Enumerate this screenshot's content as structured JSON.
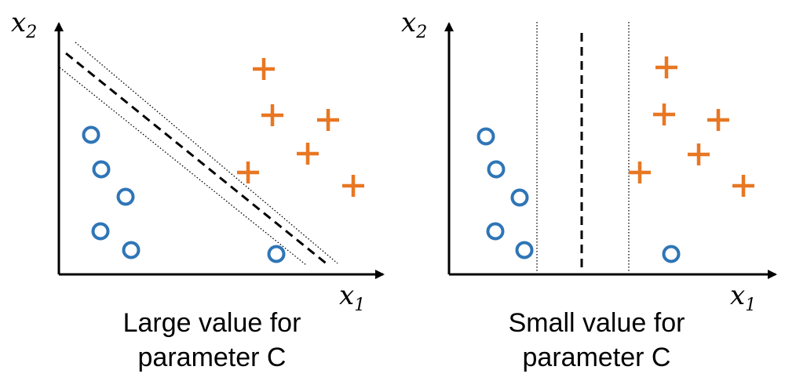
{
  "colors": {
    "circle": "#2e75b6",
    "plus": "#e87722",
    "axis": "#000000",
    "boundary": "#000000"
  },
  "panels": [
    {
      "x_axis_label": "x",
      "x_axis_sub": "1",
      "y_axis_label": "x",
      "y_axis_sub": "2",
      "caption_line1": "Large value for",
      "caption_line2": "parameter C",
      "circles": [
        [
          116,
          172
        ],
        [
          129,
          216
        ],
        [
          160,
          251
        ],
        [
          128,
          295
        ],
        [
          167,
          319
        ],
        [
          352,
          324
        ]
      ],
      "pluses": [
        [
          336,
          88
        ],
        [
          347,
          147
        ],
        [
          418,
          153
        ],
        [
          392,
          196
        ],
        [
          316,
          220
        ],
        [
          450,
          237
        ]
      ],
      "decision_boundary": [
        [
          84,
          68
        ],
        [
          418,
          338
        ]
      ],
      "margin_lines": [
        [
          [
            96,
            54
          ],
          [
            430,
            336
          ]
        ],
        [
          [
            76,
            86
          ],
          [
            390,
            338
          ]
        ]
      ]
    },
    {
      "x_axis_label": "x",
      "x_axis_sub": "1",
      "y_axis_label": "x",
      "y_axis_sub": "2",
      "caption_line1": "Small value for",
      "caption_line2": "parameter C",
      "circles": [
        [
          619,
          174
        ],
        [
          632,
          216
        ],
        [
          662,
          252
        ],
        [
          631,
          295
        ],
        [
          668,
          319
        ],
        [
          855,
          324
        ]
      ],
      "pluses": [
        [
          849,
          86
        ],
        [
          846,
          146
        ],
        [
          915,
          153
        ],
        [
          890,
          197
        ],
        [
          815,
          220
        ],
        [
          947,
          237
        ]
      ],
      "decision_boundary": [
        [
          741,
          42
        ],
        [
          741,
          348
        ]
      ],
      "margin_lines": [
        [
          [
            684,
            28
          ],
          [
            684,
            348
          ]
        ],
        [
          [
            801,
            28
          ],
          [
            801,
            348
          ]
        ]
      ]
    }
  ]
}
